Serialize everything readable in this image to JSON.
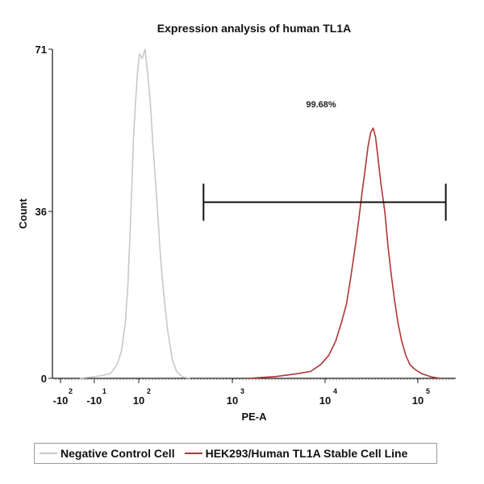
{
  "chart_data": {
    "type": "line",
    "title": "Expression analysis of human TL1A",
    "xlabel": "PE-A",
    "ylabel": "Count",
    "x_scale": "biexponential",
    "ylim": [
      0,
      71
    ],
    "y_ticks": [
      {
        "label": "71",
        "value": 71
      },
      {
        "label": "36",
        "value": 36
      },
      {
        "label": "0",
        "value": 0
      }
    ],
    "x_ticks": [
      {
        "base": "-10",
        "exp": "2",
        "value": -100
      },
      {
        "base": "-10",
        "exp": "1",
        "value": -10
      },
      {
        "base": "10",
        "exp": "2",
        "value": 100
      },
      {
        "base": "10",
        "exp": "3",
        "value": 1000
      },
      {
        "base": "10",
        "exp": "4",
        "value": 10000
      },
      {
        "base": "10",
        "exp": "5",
        "value": 100000
      }
    ],
    "gate": {
      "label": "99.68%",
      "x_start": 500,
      "x_end": 200000,
      "y": 38
    },
    "series": [
      {
        "name": "Negative Control Cell",
        "color": "#c8c8c8",
        "points": [
          [
            -40,
            0
          ],
          [
            0,
            0.5
          ],
          [
            20,
            1
          ],
          [
            35,
            3
          ],
          [
            45,
            6
          ],
          [
            55,
            12
          ],
          [
            62,
            20
          ],
          [
            68,
            30
          ],
          [
            75,
            42
          ],
          [
            80,
            52
          ],
          [
            88,
            60
          ],
          [
            95,
            66
          ],
          [
            102,
            70
          ],
          [
            110,
            69
          ],
          [
            118,
            71
          ],
          [
            126,
            66
          ],
          [
            135,
            60
          ],
          [
            145,
            50
          ],
          [
            155,
            42
          ],
          [
            165,
            34
          ],
          [
            175,
            26
          ],
          [
            190,
            18
          ],
          [
            210,
            10
          ],
          [
            235,
            4
          ],
          [
            260,
            1.5
          ],
          [
            300,
            0.3
          ],
          [
            360,
            0
          ]
        ]
      },
      {
        "name": "HEK293/Human TL1A Stable Cell Line",
        "color": "#b03535",
        "points": [
          [
            1500,
            0
          ],
          [
            3000,
            0.4
          ],
          [
            5000,
            1
          ],
          [
            7000,
            1.5
          ],
          [
            9000,
            3
          ],
          [
            11000,
            5
          ],
          [
            13000,
            8
          ],
          [
            15000,
            12
          ],
          [
            17000,
            16
          ],
          [
            19000,
            22
          ],
          [
            21000,
            28
          ],
          [
            23000,
            34
          ],
          [
            25000,
            40
          ],
          [
            27000,
            45
          ],
          [
            29000,
            50
          ],
          [
            31000,
            53
          ],
          [
            33000,
            54
          ],
          [
            35000,
            52
          ],
          [
            37000,
            48
          ],
          [
            40000,
            42
          ],
          [
            44000,
            36
          ],
          [
            48000,
            28
          ],
          [
            52000,
            22
          ],
          [
            56000,
            17
          ],
          [
            61000,
            12
          ],
          [
            67000,
            8
          ],
          [
            74000,
            5
          ],
          [
            82000,
            3
          ],
          [
            92000,
            2
          ],
          [
            110000,
            1
          ],
          [
            140000,
            0.3
          ],
          [
            175000,
            0
          ]
        ]
      }
    ],
    "legend": {
      "placement": "bottom"
    }
  }
}
